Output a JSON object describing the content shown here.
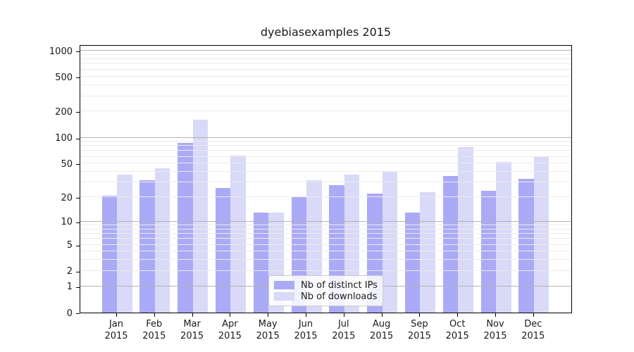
{
  "chart_data": {
    "type": "bar",
    "title": "dyebiasexamples 2015",
    "categories": [
      "Jan",
      "Feb",
      "Mar",
      "Apr",
      "May",
      "Jun",
      "Jul",
      "Aug",
      "Sep",
      "Oct",
      "Nov",
      "Dec"
    ],
    "year_label": "2015",
    "series": [
      {
        "name": "Nb of distinct IPs",
        "color": "#aaaaf6",
        "values": [
          21,
          32,
          87,
          26,
          13,
          20,
          28,
          22,
          13,
          36,
          24,
          33
        ]
      },
      {
        "name": "Nb of downloads",
        "color": "#d9d9f8",
        "values": [
          37,
          44,
          162,
          62,
          13,
          32,
          37,
          41,
          23,
          78,
          52,
          61
        ]
      }
    ],
    "xlabel": "",
    "ylabel": "",
    "yscale": "log10(value+1)",
    "ylim": [
      0,
      1181
    ],
    "yticks": [
      0,
      1,
      2,
      5,
      10,
      20,
      50,
      100,
      200,
      500,
      1000
    ],
    "major_gridlines": [
      1,
      10,
      100,
      1000
    ],
    "minor_gridline_subs": [
      2,
      3,
      4,
      5,
      6,
      7,
      8,
      9
    ],
    "grid": "both-major-and-minor-drawn-above-bars",
    "legend_position": "lower-center-inside-plot"
  },
  "colors": {
    "major_grid": "#b3b3b3",
    "minor_grid": "#ececec",
    "axis": "#000000",
    "text": "#1a1a1a",
    "background": "#ffffff"
  }
}
